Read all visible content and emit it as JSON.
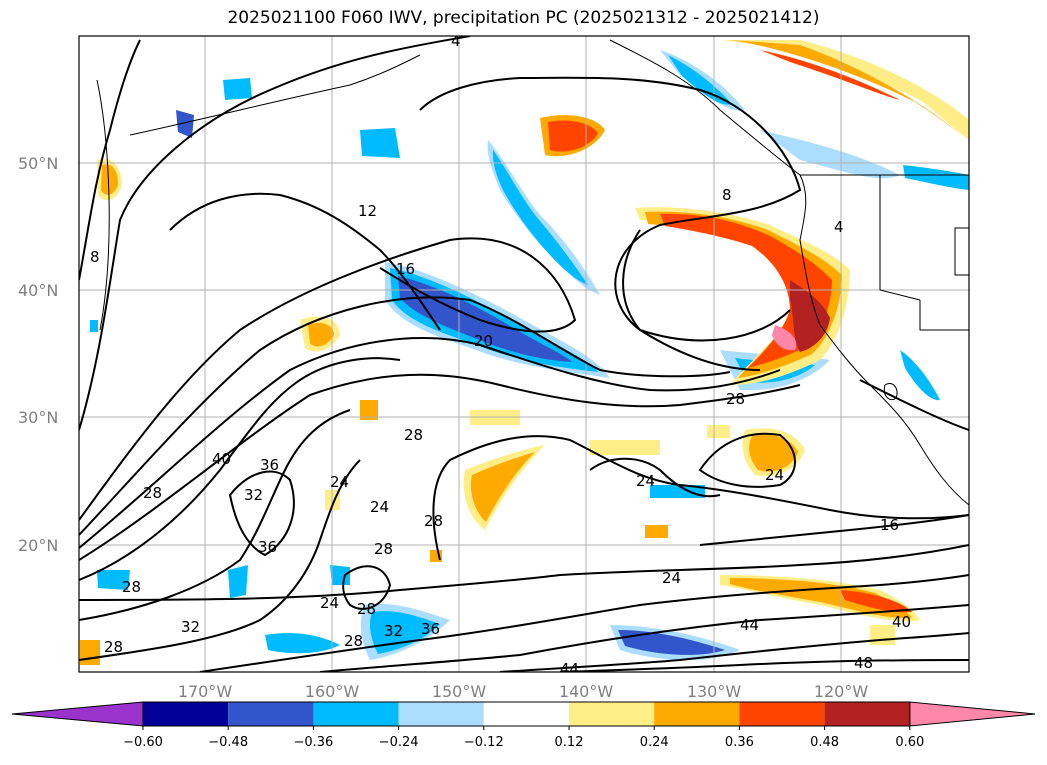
{
  "title": "2025021100 F060 IWV, precipitation PC (2025021312 - 2025021412)",
  "lat_labels": [
    "50°N",
    "40°N",
    "30°N",
    "20°N"
  ],
  "lon_labels": [
    "170°W",
    "160°W",
    "150°W",
    "140°W",
    "130°W",
    "120°W"
  ],
  "colorbar": {
    "colors": [
      "#9933cc",
      "#000099",
      "#3355cc",
      "#00bbff",
      "#aaddff",
      "#ffffff",
      "#ffee88",
      "#ffaa00",
      "#ff4400",
      "#b22222",
      "#ff88aa"
    ],
    "tick_labels": [
      "−0.60",
      "−0.48",
      "−0.36",
      "−0.24",
      "−0.12",
      "0.12",
      "0.24",
      "0.36",
      "0.48",
      "0.60"
    ]
  },
  "contour_labels": [
    "4",
    "4",
    "8",
    "8",
    "12",
    "16",
    "20",
    "28",
    "24",
    "24",
    "24",
    "28",
    "28",
    "28",
    "24",
    "28",
    "32",
    "36",
    "40",
    "36",
    "28",
    "32",
    "28",
    "24",
    "28",
    "28",
    "32",
    "36",
    "16",
    "24",
    "44",
    "40",
    "48",
    "44"
  ]
}
